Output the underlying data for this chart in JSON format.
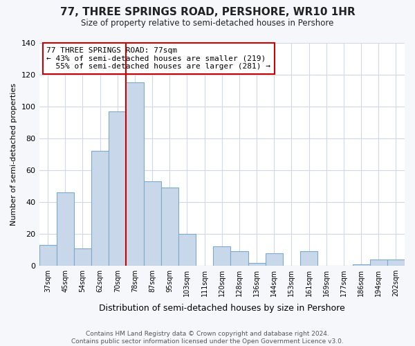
{
  "title": "77, THREE SPRINGS ROAD, PERSHORE, WR10 1HR",
  "subtitle": "Size of property relative to semi-detached houses in Pershore",
  "xlabel": "Distribution of semi-detached houses by size in Pershore",
  "ylabel": "Number of semi-detached properties",
  "categories": [
    "37sqm",
    "45sqm",
    "54sqm",
    "62sqm",
    "70sqm",
    "78sqm",
    "87sqm",
    "95sqm",
    "103sqm",
    "111sqm",
    "120sqm",
    "128sqm",
    "136sqm",
    "144sqm",
    "153sqm",
    "161sqm",
    "169sqm",
    "177sqm",
    "186sqm",
    "194sqm",
    "202sqm"
  ],
  "values": [
    13,
    46,
    11,
    72,
    97,
    115,
    53,
    49,
    20,
    0,
    12,
    9,
    2,
    8,
    0,
    9,
    0,
    0,
    1,
    4,
    4
  ],
  "bar_color": "#c8d8ea",
  "bar_edgecolor": "#7fa8c8",
  "vline_color": "#cc0000",
  "vline_index": 5,
  "annotation_text": "77 THREE SPRINGS ROAD: 77sqm\n← 43% of semi-detached houses are smaller (219)\n  55% of semi-detached houses are larger (281) →",
  "annotation_box_edgecolor": "#cc0000",
  "plot_bg_color": "#ffffff",
  "fig_bg_color": "#f5f7fa",
  "grid_color": "#d0d8e8",
  "footer_text": "Contains HM Land Registry data © Crown copyright and database right 2024.\nContains public sector information licensed under the Open Government Licence v3.0.",
  "ylim": [
    0,
    140
  ],
  "yticks": [
    0,
    20,
    40,
    60,
    80,
    100,
    120,
    140
  ]
}
